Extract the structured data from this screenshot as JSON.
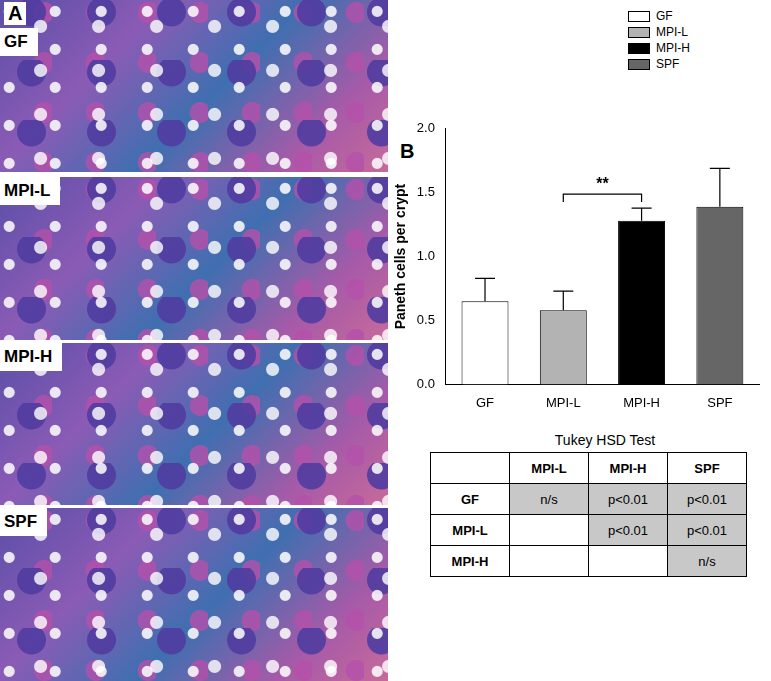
{
  "panel_a": {
    "label": "A",
    "images": [
      "GF",
      "MPI-L",
      "MPI-H",
      "SPF"
    ]
  },
  "panel_b": {
    "label": "B"
  },
  "chart_data": {
    "type": "bar",
    "y_label": "Paneth cells per crypt",
    "categories": [
      "GF",
      "MPI-L",
      "MPI-H",
      "SPF"
    ],
    "values": [
      0.65,
      0.58,
      1.28,
      1.39
    ],
    "errors": [
      0.18,
      0.15,
      0.1,
      0.3
    ],
    "colors": [
      "#ffffff",
      "#b3b3b3",
      "#000000",
      "#666666"
    ],
    "ylim": [
      0,
      2
    ],
    "yticks": [
      {
        "value": 0,
        "label": "0.0"
      },
      {
        "value": 0.5,
        "label": "0.5"
      },
      {
        "value": 1,
        "label": "1.0"
      },
      {
        "value": 1.5,
        "label": "1.5"
      },
      {
        "value": 2,
        "label": "2.0"
      }
    ],
    "grid": false,
    "legend": "top",
    "annotations": [
      {
        "from": "MPI-L",
        "to": "MPI-H",
        "text": "**"
      }
    ]
  },
  "table": {
    "title": "Tukey HSD Test",
    "columns": [
      "MPI-L",
      "MPI-H",
      "SPF"
    ],
    "rows": [
      {
        "label": "GF",
        "cells": [
          "n/s",
          "p<0.01",
          "p<0.01"
        ]
      },
      {
        "label": "MPI-L",
        "cells": [
          null,
          "p<0.01",
          "p<0.01"
        ]
      },
      {
        "label": "MPI-H",
        "cells": [
          null,
          null,
          "n/s"
        ]
      }
    ]
  }
}
